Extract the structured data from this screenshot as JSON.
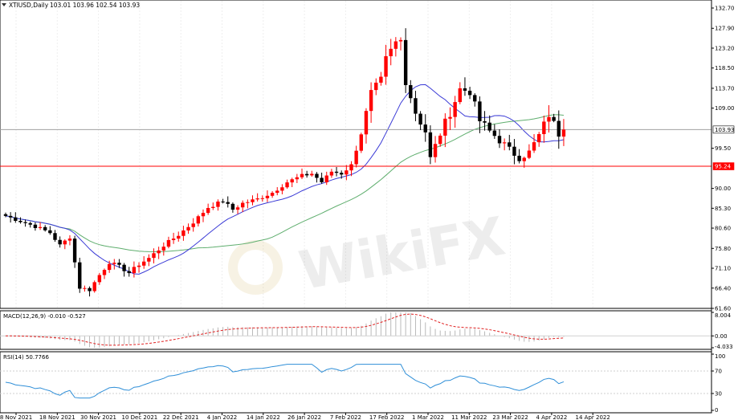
{
  "header": {
    "symbol_label": "XTIUSD,Daily",
    "ohlc_label": "103.01 103.96 102.54 103.93"
  },
  "price_panel": {
    "y_ticks": [
      "132.70",
      "127.90",
      "123.20",
      "118.50",
      "113.70",
      "109.00",
      "103.93",
      "99.50",
      "95.24",
      "90.00",
      "85.30",
      "80.60",
      "75.80",
      "71.10",
      "66.40",
      "61.60"
    ],
    "current_price_label": "103.93",
    "current_price": 103.93,
    "hline_label": "95.24",
    "hline_value": 95.24
  },
  "macd_panel": {
    "label": "MACD(12,26,9) -0.010 -0.527",
    "y_ticks": [
      "8.004",
      "0.00",
      "-4.033"
    ]
  },
  "rsi_panel": {
    "label": "RSI(14) 50.7766",
    "y_ticks": [
      "100",
      "70",
      "30",
      "0"
    ]
  },
  "x_axis": {
    "dates": [
      "8 Nov 2021",
      "18 Nov 2021",
      "30 Nov 2021",
      "10 Dec 2021",
      "22 Dec 2021",
      "4 Jan 2022",
      "14 Jan 2022",
      "26 Jan 2022",
      "7 Feb 2022",
      "17 Feb 2022",
      "1 Mar 2022",
      "11 Mar 2022",
      "23 Mar 2022",
      "4 Apr 2022",
      "14 Apr 2022"
    ]
  },
  "watermark_text": "WikiFX",
  "colors": {
    "bull": "#ff0000",
    "bear": "#000000",
    "ma_fast": "#3b3bd6",
    "ma_slow": "#5fae6e",
    "hline": "#ff0000",
    "macd_hist": "#b9b9b9",
    "macd_signal": "#e02020",
    "rsi": "#2f8fd8"
  },
  "chart_data": {
    "type": "candlestick",
    "symbol": "XTIUSD",
    "timeframe": "Daily",
    "ylim": [
      61.6,
      132.7
    ],
    "x": [
      "8 Nov 2021",
      "18 Nov 2021",
      "30 Nov 2021",
      "10 Dec 2021",
      "22 Dec 2021",
      "4 Jan 2022",
      "14 Jan 2022",
      "26 Jan 2022",
      "7 Feb 2022",
      "17 Feb 2022",
      "1 Mar 2022",
      "11 Mar 2022",
      "23 Mar 2022",
      "4 Apr 2022",
      "14 Apr 2022"
    ],
    "anchors": [
      [
        0,
        83.5
      ],
      [
        6,
        81.0
      ],
      [
        9,
        79.5
      ],
      [
        11,
        76.5
      ],
      [
        13,
        78.5
      ],
      [
        15,
        66.5
      ],
      [
        17,
        66.0
      ],
      [
        19,
        69.5
      ],
      [
        21,
        72.5
      ],
      [
        23,
        71.5
      ],
      [
        25,
        70.0
      ],
      [
        27,
        72.0
      ],
      [
        29,
        73.5
      ],
      [
        32,
        76.5
      ],
      [
        35,
        79.0
      ],
      [
        38,
        82.0
      ],
      [
        41,
        85.5
      ],
      [
        44,
        87.0
      ],
      [
        46,
        85.0
      ],
      [
        48,
        86.5
      ],
      [
        51,
        87.5
      ],
      [
        54,
        89.0
      ],
      [
        57,
        91.5
      ],
      [
        60,
        93.0
      ],
      [
        62,
        93.5
      ],
      [
        64,
        91.5
      ],
      [
        66,
        94.0
      ],
      [
        68,
        93.5
      ],
      [
        70,
        95.5
      ],
      [
        72,
        103.0
      ],
      [
        74,
        112.5
      ],
      [
        76,
        115.5
      ],
      [
        77,
        120.5
      ],
      [
        79,
        124.5
      ],
      [
        80,
        125.0
      ],
      [
        81,
        115.5
      ],
      [
        83,
        108.0
      ],
      [
        85,
        103.5
      ],
      [
        86,
        97.0
      ],
      [
        88,
        103.0
      ],
      [
        90,
        108.0
      ],
      [
        92,
        113.5
      ],
      [
        94,
        113.0
      ],
      [
        96,
        106.0
      ],
      [
        98,
        103.5
      ],
      [
        100,
        101.5
      ],
      [
        102,
        99.0
      ],
      [
        104,
        97.5
      ],
      [
        106,
        98.5
      ],
      [
        108,
        102.5
      ],
      [
        110,
        107.5
      ],
      [
        112,
        103.0
      ],
      [
        113,
        103.93
      ]
    ],
    "hline": 95.24,
    "last_close": 103.93,
    "macd": {
      "fast": 12,
      "slow": 26,
      "signal": 9,
      "value": -0.01,
      "signal_value": -0.527,
      "ylim": [
        -4.033,
        8.004
      ]
    },
    "rsi": {
      "period": 14,
      "value": 50.7766,
      "levels": [
        30,
        70
      ],
      "ylim": [
        0,
        100
      ]
    }
  }
}
